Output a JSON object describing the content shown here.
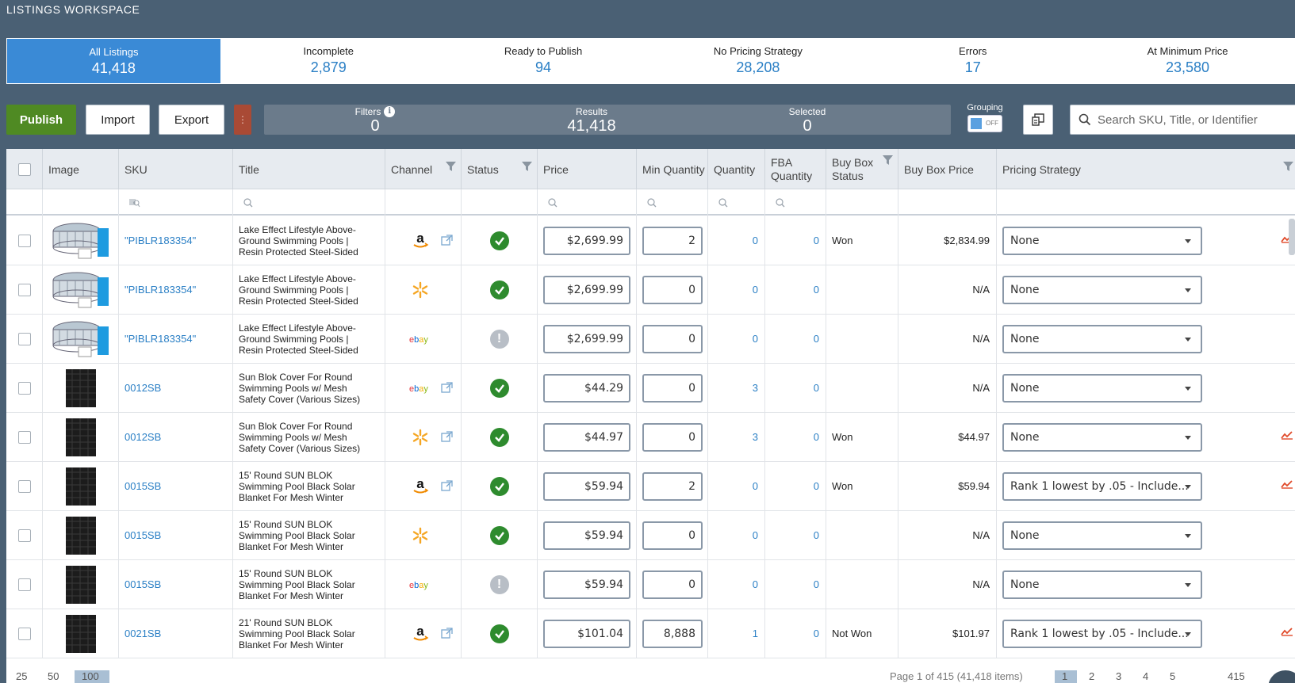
{
  "workspace_title": "LISTINGS WORKSPACE",
  "tabs": [
    {
      "label": "All Listings",
      "value": "41,418"
    },
    {
      "label": "Incomplete",
      "value": "2,879"
    },
    {
      "label": "Ready to Publish",
      "value": "94"
    },
    {
      "label": "No Pricing Strategy",
      "value": "28,208"
    },
    {
      "label": "Errors",
      "value": "17"
    },
    {
      "label": "At Minimum Price",
      "value": "23,580"
    }
  ],
  "toolbar": {
    "publish": "Publish",
    "import": "Import",
    "export": "Export",
    "more": "⋮"
  },
  "stats": {
    "filters_label": "Filters",
    "filters_value": "0",
    "results_label": "Results",
    "results_value": "41,418",
    "selected_label": "Selected",
    "selected_value": "0"
  },
  "grouping": {
    "label": "Grouping",
    "state": "OFF"
  },
  "search": {
    "placeholder": "Search SKU, Title, or Identifier"
  },
  "columns": {
    "image": "Image",
    "sku": "SKU",
    "title": "Title",
    "channel": "Channel",
    "status": "Status",
    "price": "Price",
    "min_quantity": "Min Quantity",
    "quantity": "Quantity",
    "fba_quantity": "FBA Quantity",
    "buy_box_status": "Buy Box Status",
    "buy_box_price": "Buy Box Price",
    "pricing_strategy": "Pricing Strategy"
  },
  "rows": [
    {
      "image": "pool",
      "sku": "\"PIBLR183354\"",
      "title": "Lake Effect Lifestyle Above-Ground Swimming Pools | Resin Protected Steel-Sided",
      "channel": "amazon",
      "link": true,
      "status": "ok",
      "price": "$2,699.99",
      "min_qty": "2",
      "qty": "0",
      "fba": "0",
      "bb_status": "Won",
      "bb_price": "$2,834.99",
      "strategy": "None",
      "trend": true
    },
    {
      "image": "pool",
      "sku": "\"PIBLR183354\"",
      "title": "Lake Effect Lifestyle Above-Ground Swimming Pools | Resin Protected Steel-Sided",
      "channel": "walmart",
      "link": false,
      "status": "ok",
      "price": "$2,699.99",
      "min_qty": "0",
      "qty": "0",
      "fba": "0",
      "bb_status": "",
      "bb_price": "N/A",
      "strategy": "None",
      "trend": false
    },
    {
      "image": "pool",
      "sku": "\"PIBLR183354\"",
      "title": "Lake Effect Lifestyle Above-Ground Swimming Pools | Resin Protected Steel-Sided",
      "channel": "ebay",
      "link": false,
      "status": "warn",
      "price": "$2,699.99",
      "min_qty": "0",
      "qty": "0",
      "fba": "0",
      "bb_status": "",
      "bb_price": "N/A",
      "strategy": "None",
      "trend": false
    },
    {
      "image": "mesh",
      "sku": "0012SB",
      "title": "Sun Blok Cover For Round Swimming Pools w/ Mesh Safety Cover (Various Sizes)",
      "channel": "ebay",
      "link": true,
      "status": "ok",
      "price": "$44.29",
      "min_qty": "0",
      "qty": "3",
      "fba": "0",
      "bb_status": "",
      "bb_price": "N/A",
      "strategy": "None",
      "trend": false
    },
    {
      "image": "mesh",
      "sku": "0012SB",
      "title": "Sun Blok Cover For Round Swimming Pools w/ Mesh Safety Cover (Various Sizes)",
      "channel": "walmart",
      "link": true,
      "status": "ok",
      "price": "$44.97",
      "min_qty": "0",
      "qty": "3",
      "fba": "0",
      "bb_status": "Won",
      "bb_price": "$44.97",
      "strategy": "None",
      "trend": true
    },
    {
      "image": "mesh",
      "sku": "0015SB",
      "title": "15' Round SUN BLOK Swimming Pool Black Solar Blanket For Mesh Winter",
      "channel": "amazon",
      "link": true,
      "status": "ok",
      "price": "$59.94",
      "min_qty": "2",
      "qty": "0",
      "fba": "0",
      "bb_status": "Won",
      "bb_price": "$59.94",
      "strategy": "Rank 1 lowest by .05 - Include...",
      "trend": true
    },
    {
      "image": "mesh",
      "sku": "0015SB",
      "title": "15' Round SUN BLOK Swimming Pool Black Solar Blanket For Mesh Winter",
      "channel": "walmart",
      "link": false,
      "status": "ok",
      "price": "$59.94",
      "min_qty": "0",
      "qty": "0",
      "fba": "0",
      "bb_status": "",
      "bb_price": "N/A",
      "strategy": "None",
      "trend": false
    },
    {
      "image": "mesh",
      "sku": "0015SB",
      "title": "15' Round SUN BLOK Swimming Pool Black Solar Blanket For Mesh Winter",
      "channel": "ebay",
      "link": false,
      "status": "warn",
      "price": "$59.94",
      "min_qty": "0",
      "qty": "0",
      "fba": "0",
      "bb_status": "",
      "bb_price": "N/A",
      "strategy": "None",
      "trend": false
    },
    {
      "image": "mesh",
      "sku": "0021SB",
      "title": "21' Round SUN BLOK Swimming Pool Black Solar Blanket For Mesh Winter",
      "channel": "amazon",
      "link": true,
      "status": "ok",
      "price": "$101.04",
      "min_qty": "8,888",
      "qty": "1",
      "fba": "0",
      "bb_status": "Not Won",
      "bb_price": "$101.97",
      "strategy": "Rank 1 lowest by .05 - Include...",
      "trend": true
    }
  ],
  "footer": {
    "page_sizes": [
      "25",
      "50",
      "100"
    ],
    "page_info": "Page 1 of 415 (41,418 items)",
    "pages": [
      "1",
      "2",
      "3",
      "4",
      "5"
    ],
    "last_page": "415"
  }
}
